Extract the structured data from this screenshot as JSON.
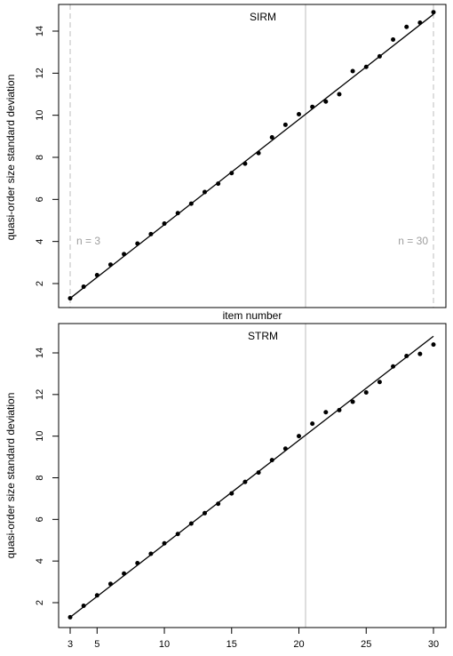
{
  "chart_data": [
    {
      "type": "scatter",
      "title": "SIRM",
      "xlabel": "item number",
      "ylabel": "quasi-order size standard deviation",
      "xlim": [
        2.5,
        30.8
      ],
      "ylim": [
        0.7,
        15.3
      ],
      "yticks": [
        2,
        4,
        6,
        8,
        10,
        12,
        14
      ],
      "vertical_line_x": 20.5,
      "dashed_lines": [
        {
          "x": 3,
          "label": "n = 3"
        },
        {
          "x": 30,
          "label": "n = 30"
        }
      ],
      "fit_line": {
        "x0": 3,
        "y0": 1.3,
        "x1": 30,
        "y1": 14.8
      },
      "x": [
        3,
        4,
        5,
        6,
        7,
        8,
        9,
        10,
        11,
        12,
        13,
        14,
        15,
        16,
        17,
        18,
        19,
        20,
        21,
        22,
        23,
        24,
        25,
        26,
        27,
        28,
        29,
        30
      ],
      "y": [
        1.3,
        1.85,
        2.4,
        2.9,
        3.4,
        3.9,
        4.35,
        4.85,
        5.35,
        5.8,
        6.35,
        6.75,
        7.25,
        7.7,
        8.2,
        8.95,
        9.55,
        10.05,
        10.4,
        10.65,
        11.0,
        12.1,
        12.3,
        12.8,
        13.6,
        14.2,
        14.4,
        14.9
      ]
    },
    {
      "type": "scatter",
      "title": "STRM",
      "xlabel": "",
      "ylabel": "quasi-order size standard deviation",
      "xlim": [
        2.5,
        30.8
      ],
      "ylim": [
        0.7,
        15.3
      ],
      "xticks": [
        3,
        5,
        10,
        15,
        20,
        25,
        30
      ],
      "yticks": [
        2,
        4,
        6,
        8,
        10,
        12,
        14
      ],
      "vertical_line_x": 20.5,
      "fit_line": {
        "x0": 3,
        "y0": 1.3,
        "x1": 30,
        "y1": 14.8
      },
      "x": [
        3,
        4,
        5,
        6,
        7,
        8,
        9,
        10,
        11,
        12,
        13,
        14,
        15,
        16,
        17,
        18,
        19,
        20,
        21,
        22,
        23,
        24,
        25,
        26,
        27,
        28,
        29,
        30
      ],
      "y": [
        1.3,
        1.85,
        2.35,
        2.9,
        3.4,
        3.9,
        4.35,
        4.85,
        5.3,
        5.8,
        6.3,
        6.75,
        7.25,
        7.8,
        8.25,
        8.85,
        9.4,
        10.0,
        10.6,
        11.15,
        11.25,
        11.65,
        12.1,
        12.6,
        13.35,
        13.85,
        13.95,
        14.4
      ]
    }
  ]
}
